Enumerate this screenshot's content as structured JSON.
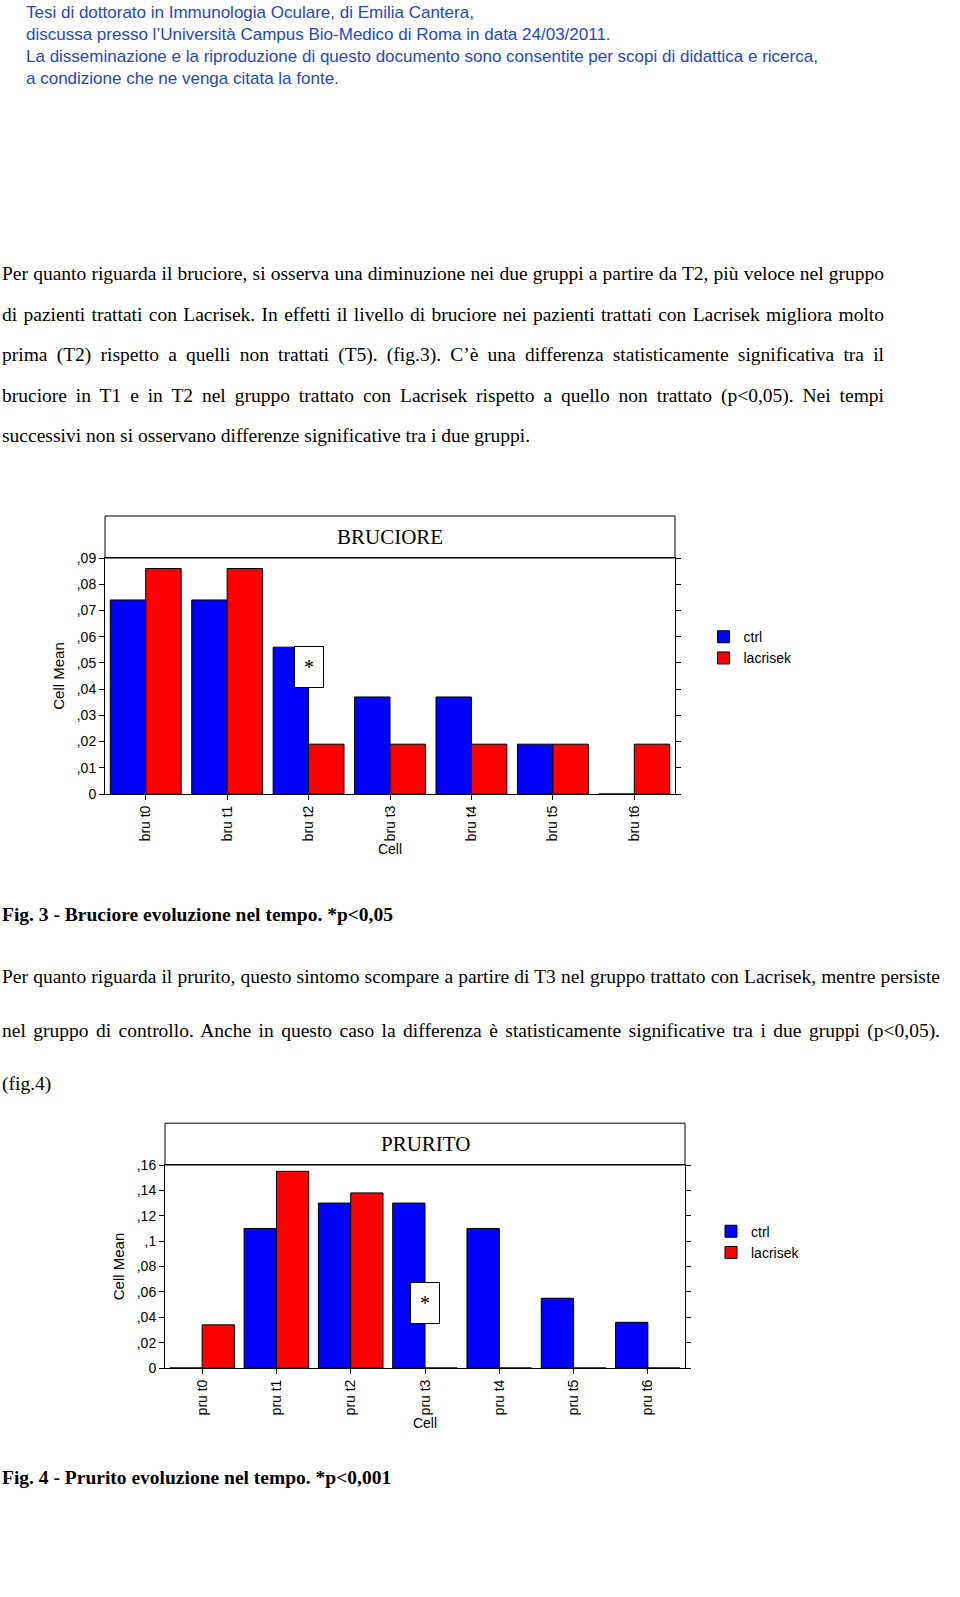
{
  "header": [
    "Tesi di dottorato in Immunologia Oculare, di Emilia Cantera,",
    "discussa presso l’Università Campus Bio-Medico di Roma in data 24/03/2011.",
    "La disseminazione e la riproduzione di questo documento sono consentite per scopi di didattica e ricerca,",
    "a condizione che ne venga citata la fonte."
  ],
  "paragraphs": [
    "Per quanto riguarda il bruciore, si osserva una diminuzione nei due gruppi a partire da T2, più veloce nel gruppo di pazienti trattati con Lacrisek. In effetti il livello di bruciore nei pazienti trattati con Lacrisek migliora molto prima (T2) rispetto a quelli non trattati (T5). (fig.3). C’è una differenza statisticamente significativa tra il bruciore in T1 e in T2 nel gruppo trattato con Lacrisek rispetto a quello non trattato (p<0,05). Nei tempi successivi non si osservano differenze significative tra i due gruppi.",
    "Per quanto riguarda il prurito, questo sintomo scompare a partire di T3 nel gruppo trattato con Lacrisek, mentre persiste nel gruppo di controllo. Anche in questo caso la differenza è statisticamente significative tra i due gruppi (p<0,05). (fig.4)"
  ],
  "captions": [
    "Fig. 3 - Bruciore evoluzione nel tempo. *p<0,05",
    "Fig. 4 - Prurito evoluzione nel tempo. *p<0,001"
  ],
  "chart_data": [
    {
      "type": "bar",
      "title": "BRUCIORE",
      "x_label": "Cell",
      "y_label": "Cell Mean",
      "categories": [
        "bru t0",
        "bru t1",
        "bru t2",
        "bru t3",
        "bru t4",
        "bru t5",
        "bru t6"
      ],
      "series": [
        {
          "name": "ctrl",
          "color": "#0000ff",
          "values": [
            0.074,
            0.074,
            0.056,
            0.037,
            0.037,
            0.019,
            0
          ]
        },
        {
          "name": "lacrisek",
          "color": "#ff0000",
          "values": [
            0.086,
            0.086,
            0.019,
            0.019,
            0.019,
            0.019,
            0.019
          ]
        }
      ],
      "ylim": [
        0,
        0.09
      ],
      "yticks": [
        0,
        {
          "value": 0.01,
          "label": ",01"
        },
        {
          "value": 0.02,
          "label": ",02"
        },
        {
          "value": 0.03,
          "label": ",03"
        },
        {
          "value": 0.04,
          "label": ",04"
        },
        {
          "value": 0.05,
          "label": ",05"
        },
        {
          "value": 0.06,
          "label": ",06"
        },
        {
          "value": 0.07,
          "label": ",07"
        },
        {
          "value": 0.08,
          "label": ",08"
        },
        {
          "value": 0.09,
          "label": ",09"
        }
      ],
      "grid": false,
      "legend": "right",
      "annotations": [
        {
          "text": "*",
          "category": "bru t2"
        }
      ]
    },
    {
      "type": "bar",
      "title": "PRURITO",
      "x_label": "Cell",
      "y_label": "Cell Mean",
      "categories": [
        "pru t0",
        "pru t1",
        "pru t2",
        "pru t3",
        "pru t4",
        "pru t5",
        "pru t6"
      ],
      "series": [
        {
          "name": "ctrl",
          "color": "#0000ff",
          "values": [
            0,
            0.11,
            0.13,
            0.13,
            0.11,
            0.055,
            0.036
          ]
        },
        {
          "name": "lacrisek",
          "color": "#ff0000",
          "values": [
            0.034,
            0.155,
            0.138,
            0,
            0,
            0,
            0
          ]
        }
      ],
      "ylim": [
        0,
        0.16
      ],
      "yticks": [
        0,
        {
          "value": 0.02,
          "label": ",02"
        },
        {
          "value": 0.04,
          "label": ",04"
        },
        {
          "value": 0.06,
          "label": ",06"
        },
        {
          "value": 0.08,
          "label": ",08"
        },
        {
          "value": 0.1,
          "label": ",1"
        },
        {
          "value": 0.12,
          "label": ",12"
        },
        {
          "value": 0.14,
          "label": ",14"
        },
        {
          "value": 0.16,
          "label": ",16"
        }
      ],
      "grid": false,
      "legend": "right",
      "annotations": [
        {
          "text": "*",
          "category": "pru t3"
        }
      ]
    }
  ]
}
